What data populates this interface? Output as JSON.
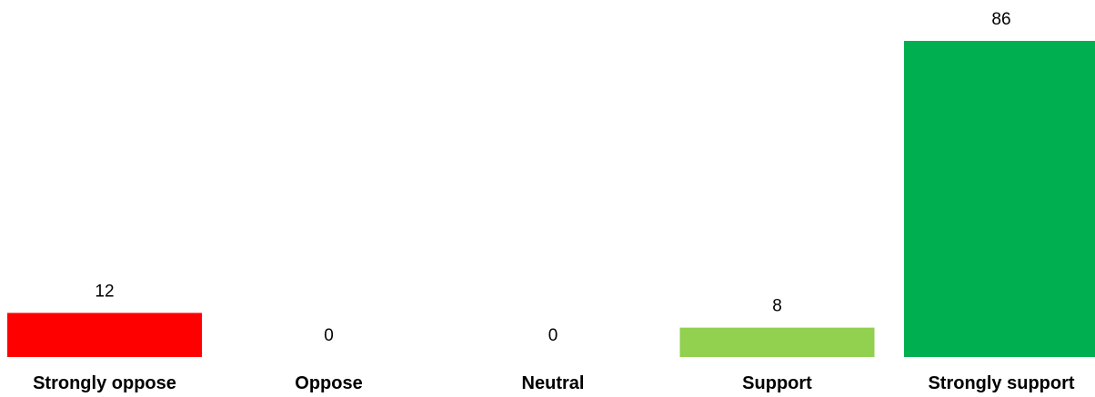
{
  "chart_data": {
    "type": "bar",
    "categories": [
      "Strongly oppose",
      "Oppose",
      "Neutral",
      "Support",
      "Strongly support"
    ],
    "values": [
      12,
      0,
      0,
      8,
      86
    ],
    "colors": [
      "#ff0000",
      "#ffffff",
      "#ffffff",
      "#92d050",
      "#00b050"
    ],
    "data_labels": [
      "12",
      "0",
      "0",
      "8",
      "86"
    ],
    "ylim": [
      0,
      86
    ],
    "grid": false,
    "axes_visible": false
  }
}
